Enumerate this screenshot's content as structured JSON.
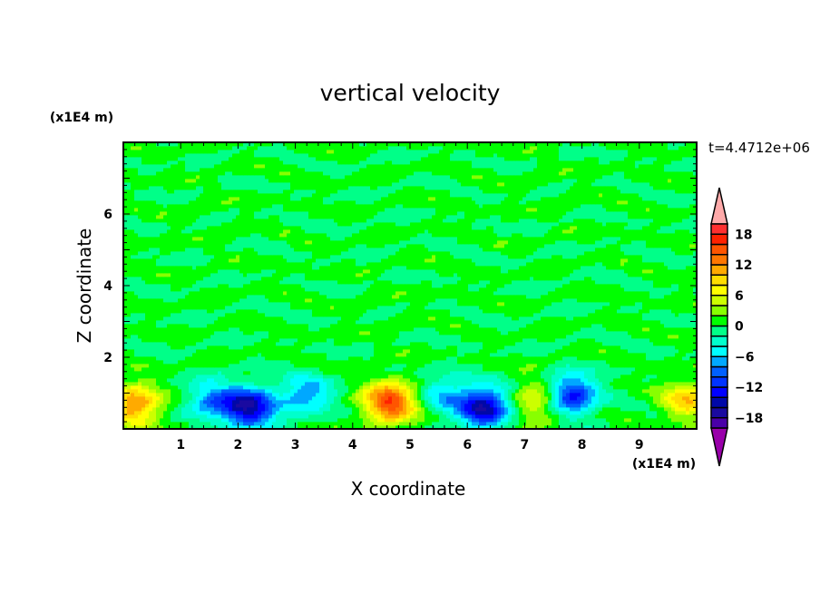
{
  "chart_data": {
    "type": "heatmap",
    "title": "vertical velocity",
    "xlabel": "X coordinate",
    "ylabel": "Z coordinate",
    "x_unit": "(x1E4 m)",
    "y_unit": "(x1E4 m)",
    "time_label": "t=4.4712e+06",
    "xlim": [
      0,
      10
    ],
    "ylim": [
      0,
      8
    ],
    "x_ticks": [
      1,
      2,
      3,
      4,
      5,
      6,
      7,
      8,
      9
    ],
    "y_ticks": [
      2,
      4,
      6
    ],
    "colorbar": {
      "levels": [
        -20,
        -18,
        -16,
        -14,
        -12,
        -10,
        -8,
        -6,
        -4,
        -2,
        0,
        2,
        4,
        6,
        8,
        10,
        12,
        14,
        16,
        18,
        20
      ],
      "tick_labels": [
        "18",
        "12",
        "6",
        "0",
        "−6",
        "−12",
        "−18"
      ],
      "tick_values": [
        18,
        12,
        6,
        0,
        -6,
        -12,
        -18
      ],
      "colors": [
        "#4a00a8",
        "#1a0aa0",
        "#0008a8",
        "#0000ff",
        "#0033ff",
        "#0060ff",
        "#00a8ff",
        "#00ffff",
        "#00ffcc",
        "#00ff88",
        "#00ff00",
        "#88ff00",
        "#ccff00",
        "#ffff00",
        "#ffdd00",
        "#ffaa00",
        "#ff7700",
        "#ff5500",
        "#ff2200",
        "#ff3030"
      ],
      "over_color": "#ffaaaa",
      "under_color": "#9900aa"
    },
    "features": [
      {
        "x": 0.2,
        "z": 0.7,
        "w": 12
      },
      {
        "x": 4.65,
        "z": 0.75,
        "w": 16
      },
      {
        "x": 7.25,
        "z": 0.8,
        "w": 8
      },
      {
        "x": 9.85,
        "z": 0.8,
        "w": 9
      },
      {
        "x": 2.2,
        "z": 0.6,
        "w": -16
      },
      {
        "x": 1.55,
        "z": 0.8,
        "w": -8
      },
      {
        "x": 3.2,
        "z": 0.95,
        "w": -8
      },
      {
        "x": 6.3,
        "z": 0.6,
        "w": -16
      },
      {
        "x": 7.8,
        "z": 0.95,
        "w": -14
      },
      {
        "x": 5.6,
        "z": 1.0,
        "w": -6
      }
    ]
  }
}
